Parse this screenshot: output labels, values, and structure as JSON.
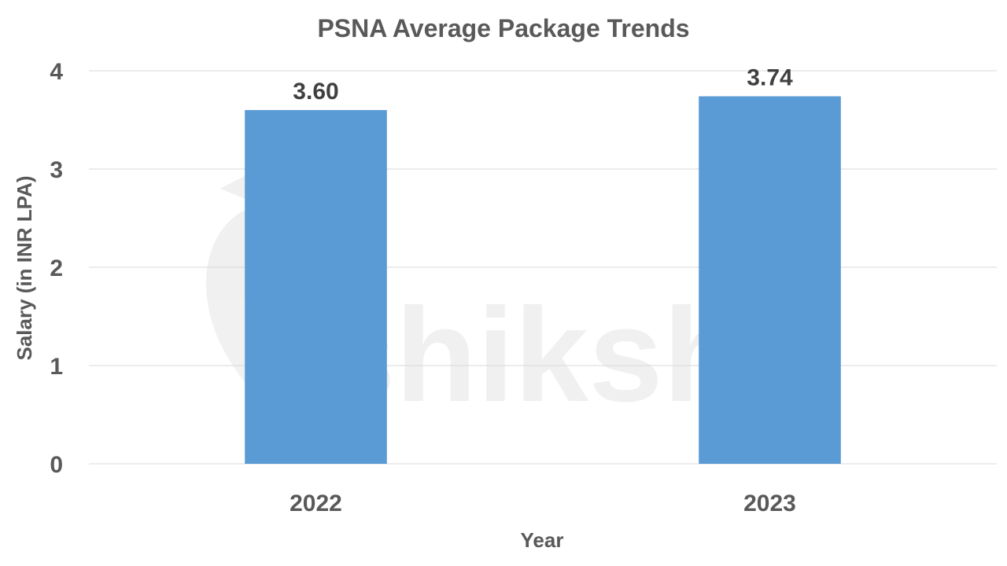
{
  "chart_data": {
    "type": "bar",
    "title": "PSNA Average Package Trends",
    "xlabel": "Year",
    "ylabel": "Salary (in INR LPA)",
    "categories": [
      "2022",
      "2023"
    ],
    "values": [
      3.6,
      3.74
    ],
    "data_labels": [
      "3.60",
      "3.74"
    ],
    "ylim": [
      0,
      4
    ],
    "yticks": [
      "0",
      "1",
      "2",
      "3",
      "4"
    ],
    "grid": true,
    "legend": "none",
    "bar_color": "#5b9bd5",
    "gridline_color": "#d9d9d9"
  },
  "watermark": {
    "text": "shiksha",
    "icon": "shiksha-logo-icon",
    "color": "#8c8c8c"
  }
}
